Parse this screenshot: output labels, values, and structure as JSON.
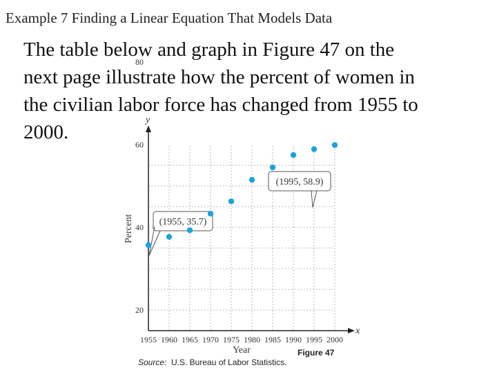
{
  "slide": {
    "title": "Example 7 Finding a Linear Equation That Models Data",
    "body_lines": [
      "The table below and graph in Figure 47 on the",
      "next page illustrate how the percent of women in",
      "the civilian labor force has changed from 1955 to",
      "2000."
    ]
  },
  "chart_data": {
    "type": "scatter",
    "x": [
      1955,
      1960,
      1965,
      1970,
      1975,
      1980,
      1985,
      1990,
      1995,
      2000
    ],
    "y": [
      35.7,
      37.7,
      39.3,
      43.3,
      46.3,
      51.5,
      54.5,
      57.5,
      58.9,
      59.9
    ],
    "xlabel": "Year",
    "ylabel": "Percent",
    "x_axis_name": "x",
    "y_axis_name": "y",
    "xlim": [
      1955,
      2000
    ],
    "ylim": [
      20,
      80
    ],
    "x_ticks": [
      "1955",
      "1960",
      "1965",
      "1970",
      "1975",
      "1980",
      "1985",
      "1990",
      "1995",
      "2000"
    ],
    "y_ticks": [
      "20",
      "40",
      "60",
      "80"
    ],
    "grid": "dotted",
    "point_color": "#1ba3e0",
    "annotations": [
      {
        "x": 1955,
        "y": 35.7,
        "text": "(1955, 35.7)"
      },
      {
        "x": 1995,
        "y": 58.9,
        "text": "(1995, 58.9)"
      }
    ],
    "source_prefix": "Source:",
    "source": "U.S. Bureau of Labor Statistics.",
    "figure_label": "Figure 47"
  }
}
